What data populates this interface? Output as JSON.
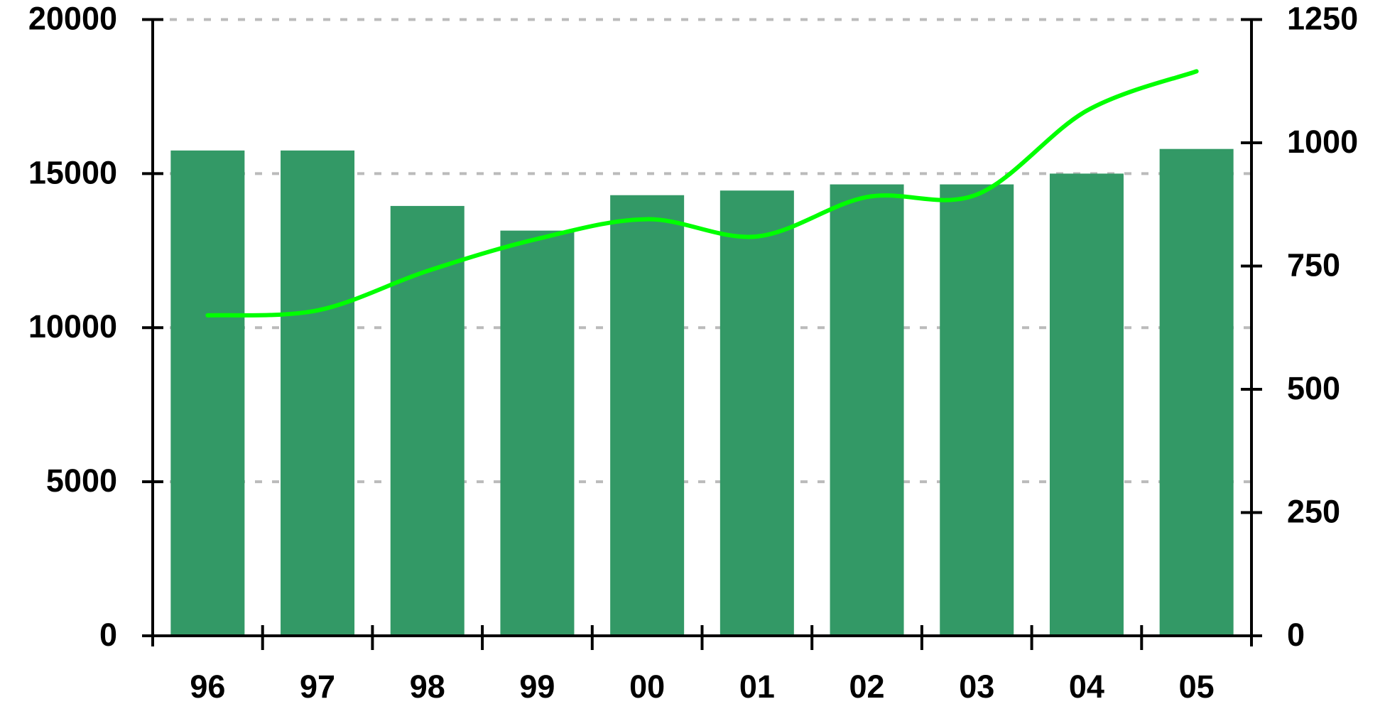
{
  "chart_data": {
    "type": "bar",
    "categories": [
      "96",
      "97",
      "98",
      "99",
      "00",
      "01",
      "02",
      "03",
      "04",
      "05"
    ],
    "series": [
      {
        "type": "bar",
        "color": "#339966",
        "values": [
          15750,
          15750,
          13950,
          13150,
          14300,
          14450,
          14650,
          14650,
          15000,
          15800
        ]
      },
      {
        "type": "line",
        "axis": "y2",
        "color": "#00ff00",
        "values": [
          650,
          660,
          740,
          805,
          845,
          810,
          890,
          895,
          1065,
          1145
        ]
      }
    ],
    "ylim": [
      0,
      20000
    ],
    "yticks": [
      0,
      5000,
      10000,
      15000,
      20000
    ],
    "y2lim": [
      0,
      1250
    ],
    "y2ticks": [
      0,
      250,
      500,
      750,
      1000,
      1250
    ],
    "grid": true
  }
}
